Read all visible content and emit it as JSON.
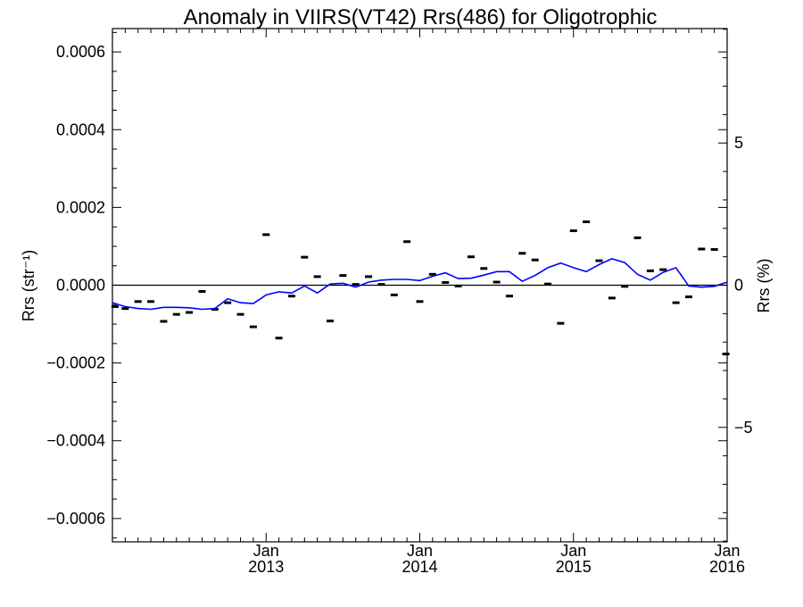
{
  "chart_data": {
    "type": "scatter",
    "title": "Anomaly in VIIRS(VT42) Rrs(486) for Oligotrophic",
    "xlabel": "",
    "ylabel": "Rrs (str⁻¹)",
    "ylabel_right": "Rrs (%)",
    "x_unit": "months since Jan 2012",
    "xlim": [
      0,
      48
    ],
    "ylim": [
      -0.00066,
      0.00066
    ],
    "ylim_right": [
      -9.025,
      9.025
    ],
    "y_ticks": [
      {
        "value": 0.0006,
        "label": "0.0006"
      },
      {
        "value": 0.0004,
        "label": "0.0004"
      },
      {
        "value": 0.0002,
        "label": "0.0002"
      },
      {
        "value": 0,
        "label": "0.0000"
      },
      {
        "value": -0.0002,
        "label": "−0.0002"
      },
      {
        "value": -0.0004,
        "label": "−0.0004"
      },
      {
        "value": -0.0006,
        "label": "−0.0006"
      }
    ],
    "y_right_ticks": [
      {
        "value": 5,
        "label": "5"
      },
      {
        "value": 0,
        "label": "0"
      },
      {
        "value": -5,
        "label": "−5"
      }
    ],
    "x_ticks": [
      {
        "value": 12,
        "month": "Jan",
        "year": "2013"
      },
      {
        "value": 24,
        "month": "Jan",
        "year": "2014"
      },
      {
        "value": 36,
        "month": "Jan",
        "year": "2015"
      },
      {
        "value": 48,
        "month": "Jan",
        "year": "2016"
      }
    ],
    "zero_line": 0,
    "series": [
      {
        "name": "",
        "style": "dash-markers",
        "color": "#000000",
        "points": [
          [
            0.2,
            -5.5e-05
          ],
          [
            1.0,
            -6e-05
          ],
          [
            2.0,
            -4.2e-05
          ],
          [
            3.0,
            -4.2e-05
          ],
          [
            4.0,
            -9.3e-05
          ],
          [
            5.0,
            -7.5e-05
          ],
          [
            6.0,
            -7e-05
          ],
          [
            7.0,
            -1.6e-05
          ],
          [
            8.0,
            -6.2e-05
          ],
          [
            9.0,
            -4.5e-05
          ],
          [
            10.0,
            -7.5e-05
          ],
          [
            11.0,
            -0.000107
          ],
          [
            12.0,
            0.00013
          ],
          [
            13.0,
            -0.000136
          ],
          [
            14.0,
            -2.8e-05
          ],
          [
            15.0,
            7.2e-05
          ],
          [
            16.0,
            2.2e-05
          ],
          [
            17.0,
            -9.2e-05
          ],
          [
            18.0,
            2.5e-05
          ],
          [
            19.0,
            2e-06
          ],
          [
            20.0,
            2.2e-05
          ],
          [
            21.0,
            2e-06
          ],
          [
            22.0,
            -2.5e-05
          ],
          [
            23.0,
            0.000112
          ],
          [
            24.0,
            -4.2e-05
          ],
          [
            25.0,
            2.8e-05
          ],
          [
            26.0,
            7e-06
          ],
          [
            27.0,
            -2e-06
          ],
          [
            28.0,
            7.3e-05
          ],
          [
            29.0,
            4.3e-05
          ],
          [
            30.0,
            8e-06
          ],
          [
            31.0,
            -2.8e-05
          ],
          [
            32.0,
            8.2e-05
          ],
          [
            33.0,
            6.5e-05
          ],
          [
            34.0,
            3e-06
          ],
          [
            35.0,
            -9.8e-05
          ],
          [
            36.0,
            0.00014
          ],
          [
            37.0,
            0.000163
          ],
          [
            38.0,
            6.3e-05
          ],
          [
            39.0,
            -3.3e-05
          ],
          [
            40.0,
            -3e-06
          ],
          [
            41.0,
            0.000122
          ],
          [
            42.0,
            3.7e-05
          ],
          [
            43.0,
            4e-05
          ],
          [
            44.0,
            -4.5e-05
          ],
          [
            45.0,
            -3e-05
          ],
          [
            46.0,
            9.3e-05
          ],
          [
            47.0,
            9.2e-05
          ],
          [
            47.9,
            -0.000177
          ]
        ]
      },
      {
        "name": "",
        "style": "line",
        "color": "#0000ff",
        "points": [
          [
            0,
            -4.5e-05
          ],
          [
            1,
            -5.5e-05
          ],
          [
            2,
            -6e-05
          ],
          [
            3,
            -6.2e-05
          ],
          [
            4,
            -5.7e-05
          ],
          [
            5,
            -5.7e-05
          ],
          [
            6,
            -5.8e-05
          ],
          [
            7,
            -6.2e-05
          ],
          [
            8,
            -6e-05
          ],
          [
            9,
            -3.5e-05
          ],
          [
            10,
            -4.5e-05
          ],
          [
            11,
            -4.7e-05
          ],
          [
            12,
            -2.5e-05
          ],
          [
            13,
            -1.7e-05
          ],
          [
            14,
            -2e-05
          ],
          [
            15,
            -2e-06
          ],
          [
            16,
            -2e-05
          ],
          [
            17,
            3e-06
          ],
          [
            18,
            5e-06
          ],
          [
            19,
            -5e-06
          ],
          [
            20,
            8e-06
          ],
          [
            21,
            1.3e-05
          ],
          [
            22,
            1.5e-05
          ],
          [
            23,
            1.5e-05
          ],
          [
            24,
            1.2e-05
          ],
          [
            25,
            2.3e-05
          ],
          [
            26,
            3.2e-05
          ],
          [
            27,
            1.7e-05
          ],
          [
            28,
            1.8e-05
          ],
          [
            29,
            2.6e-05
          ],
          [
            30,
            3.5e-05
          ],
          [
            31,
            3.5e-05
          ],
          [
            32,
            1e-05
          ],
          [
            33,
            2.5e-05
          ],
          [
            34,
            4.5e-05
          ],
          [
            35,
            5.7e-05
          ],
          [
            36,
            4.5e-05
          ],
          [
            37,
            3.5e-05
          ],
          [
            38,
            5.3e-05
          ],
          [
            39,
            6.8e-05
          ],
          [
            40,
            5.8e-05
          ],
          [
            41,
            2.8e-05
          ],
          [
            42,
            1.3e-05
          ],
          [
            43,
            3.3e-05
          ],
          [
            44,
            4.5e-05
          ],
          [
            45,
            -2e-06
          ],
          [
            46,
            -5e-06
          ],
          [
            47,
            -3e-06
          ],
          [
            48,
            8e-06
          ]
        ]
      }
    ],
    "grid": false,
    "legend": "none"
  }
}
